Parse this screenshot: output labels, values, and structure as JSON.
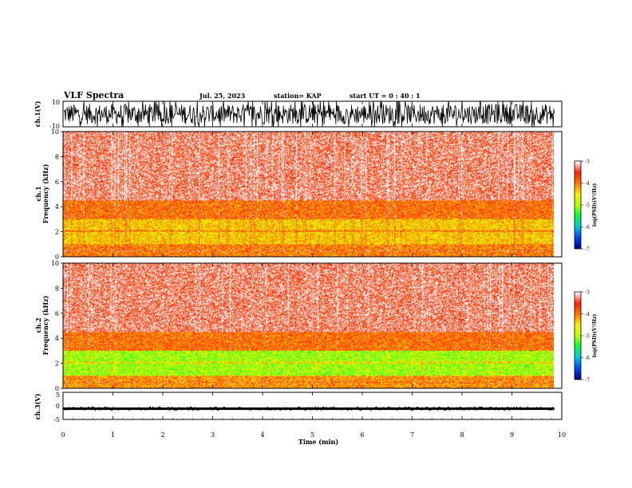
{
  "header": {
    "title": "VLF Spectra",
    "date": "Jul. 25, 2023",
    "station": "station= KAP",
    "start_time": "start UT = 0 : 40 : 1"
  },
  "colors": {
    "background": "#ffffff",
    "ink": "#000000",
    "colormap": [
      "#000088",
      "#0044ff",
      "#00ccdd",
      "#00ff44",
      "#bbff00",
      "#ffee00",
      "#ff7700",
      "#ff2200",
      "#ffffff"
    ]
  },
  "chart_data": [
    {
      "type": "line",
      "name": "ch1-waveform",
      "ylabel": "ch.1(V)",
      "ylim": [
        -10,
        10
      ],
      "y_ticks": [
        "10",
        "-10"
      ],
      "xlim": [
        0,
        10
      ],
      "x_unit": "min",
      "signal": "dense noise waveform, amplitude mostly -8..+8 V, occasional clipping at +/-10 V"
    },
    {
      "type": "heatmap",
      "name": "ch1-spectrogram",
      "ylabel": "ch.1 Frequency (kHz)",
      "ylim": [
        0,
        10
      ],
      "y_ticks": [
        "0",
        "2",
        "4",
        "6",
        "8",
        "10"
      ],
      "xlim": [
        0,
        9.85
      ],
      "colorbar": {
        "label": "log(PSD)(V²/Hz)",
        "range": [
          -7,
          -3
        ],
        "ticks": [
          "-3",
          "-4",
          "-5",
          "-6",
          "-7"
        ]
      },
      "description_levels": [
        {
          "freq_range_khz": [
            0,
            1.0
          ],
          "level": -4.0
        },
        {
          "freq_range_khz": [
            1.0,
            3.0
          ],
          "level": -4.4
        },
        {
          "freq_range_khz": [
            3.0,
            4.5
          ],
          "level": -3.9
        },
        {
          "freq_range_khz": [
            4.5,
            10
          ],
          "level": -3.3
        }
      ]
    },
    {
      "type": "heatmap",
      "name": "ch2-spectrogram",
      "ylabel": "ch.2 Frequency (kHz)",
      "ylim": [
        0,
        10
      ],
      "y_ticks": [
        "0",
        "2",
        "4",
        "6",
        "8",
        "10"
      ],
      "xlim": [
        0,
        9.85
      ],
      "colorbar": {
        "label": "log(PSD)(V²/Hz)",
        "range": [
          -7,
          -3
        ],
        "ticks": [
          "-3",
          "-4",
          "-5",
          "-6",
          "-7"
        ]
      },
      "description_levels": [
        {
          "freq_range_khz": [
            0,
            1.0
          ],
          "level": -4.1
        },
        {
          "freq_range_khz": [
            1.0,
            3.0
          ],
          "level": -5.0
        },
        {
          "freq_range_khz": [
            3.0,
            4.5
          ],
          "level": -3.9
        },
        {
          "freq_range_khz": [
            4.5,
            10
          ],
          "level": -3.3
        }
      ]
    },
    {
      "type": "line",
      "name": "ch3-waveform",
      "ylabel": "ch.3(V)",
      "ylim": [
        -5,
        5
      ],
      "y_ticks": [
        "5",
        "0",
        "-5"
      ],
      "xlim": [
        0,
        10
      ],
      "signal": "flat noisy band around -1 V, amplitude about +/-0.6 V"
    }
  ],
  "x_axis": {
    "label": "Time (min)",
    "range": [
      0,
      10
    ],
    "ticks": [
      "0",
      "1",
      "2",
      "3",
      "4",
      "5",
      "6",
      "7",
      "8",
      "9",
      "10"
    ]
  }
}
